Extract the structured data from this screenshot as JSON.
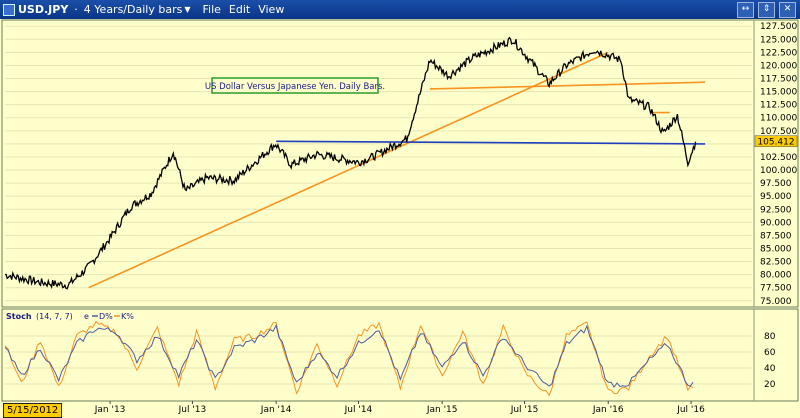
{
  "window": {
    "symbol": "USD.JPY",
    "dot": "·",
    "dropdown_glyph": "▼",
    "description": "4 Years/Daily bars",
    "menu": [
      "File",
      "Edit",
      "View"
    ],
    "controls": [
      "↔",
      "⇕",
      "✕"
    ]
  },
  "colors": {
    "background": "#ffffcc",
    "price": "#000000",
    "trendline": "#f7931e",
    "support": "#1f3fbf",
    "stoch_d": "#505aa0",
    "stoch_k": "#f7931e"
  },
  "annotation": "US Dollar Versus Japanese Yen. Daily Bars.",
  "stoch_header": {
    "name": "Stoch",
    "params": "(14, 7, 7)",
    "marker": "e",
    "d_label": "D%",
    "k_label": "K%"
  },
  "date_box": "5/15/2012",
  "chart_data": [
    {
      "type": "line",
      "series": [
        {
          "x": [
            "2012-05-15",
            "2012-08-01",
            "2012-10-01",
            "2012-11-15",
            "2013-01-01",
            "2013-02-15",
            "2013-04-01",
            "2013-05-20",
            "2013-06-15",
            "2013-08-01",
            "2013-10-01",
            "2013-12-31",
            "2014-02-03",
            "2014-04-01",
            "2014-07-01",
            "2014-08-01",
            "2014-10-15",
            "2014-12-05",
            "2015-01-15",
            "2015-03-10",
            "2015-06-05",
            "2015-08-24",
            "2015-10-01",
            "2015-12-01",
            "2016-01-29",
            "2016-02-15",
            "2016-04-01",
            "2016-05-01",
            "2016-06-01",
            "2016-06-24",
            "2016-07-11"
          ],
          "values": [
            80.0,
            78.5,
            78.0,
            81.5,
            87.0,
            93.0,
            95.5,
            103.5,
            96.0,
            98.5,
            98.0,
            105.0,
            101.0,
            103.0,
            101.5,
            102.5,
            106.0,
            121.0,
            118.0,
            121.5,
            125.0,
            116.5,
            120.0,
            123.0,
            121.0,
            113.5,
            112.0,
            107.0,
            110.5,
            101.5,
            105.41
          ]
        }
      ],
      "y_ticks": [
        "127.500",
        "125.000",
        "122.500",
        "120.000",
        "117.500",
        "115.000",
        "112.500",
        "110.000",
        "107.500",
        "105.000",
        "102.500",
        "100.000",
        "97.500",
        "95.000",
        "92.500",
        "90.000",
        "87.500",
        "85.000",
        "82.500",
        "80.000",
        "77.500",
        "75.000"
      ],
      "ylim": [
        74.0,
        128.5
      ],
      "last_value": "105.412",
      "trendlines": [
        {
          "name": "rising-support",
          "from": [
            "2012-11-15",
            77.5
          ],
          "to": [
            "2016-01-01",
            122.5
          ],
          "color": "#f7931e"
        },
        {
          "name": "horizontal-resistance",
          "from": [
            "2014-12-05",
            115.5
          ],
          "to": [
            "2016-08-01",
            116.8
          ],
          "color": "#f7931e"
        },
        {
          "name": "short-support",
          "from": [
            "2016-04-01",
            111.0
          ],
          "to": [
            "2016-05-15",
            111.0
          ],
          "color": "#f7931e"
        },
        {
          "name": "horizontal-support",
          "from": [
            "2014-01-01",
            105.5
          ],
          "to": [
            "2016-08-01",
            105.0
          ],
          "color": "#1f3fbf"
        }
      ]
    },
    {
      "type": "line",
      "x_ticks": [
        "Jan '13",
        "Jul '13",
        "Jan '14",
        "Jul '14",
        "Jan '15",
        "Jul '15",
        "Jan '16",
        "Jul '16"
      ],
      "y_ticks": [
        "80",
        "60",
        "40",
        "20"
      ],
      "ylim": [
        0,
        100
      ],
      "series": [
        {
          "key": "k",
          "x": [
            "2012-05-15",
            "2012-06-20",
            "2012-08-01",
            "2012-09-10",
            "2012-10-20",
            "2012-12-01",
            "2013-01-15",
            "2013-03-01",
            "2013-04-15",
            "2013-06-01",
            "2013-07-10",
            "2013-08-20",
            "2013-10-01",
            "2013-11-15",
            "2014-01-01",
            "2014-02-15",
            "2014-04-01",
            "2014-05-15",
            "2014-07-01",
            "2014-08-15",
            "2014-10-01",
            "2014-11-15",
            "2015-01-01",
            "2015-02-15",
            "2015-04-01",
            "2015-05-15",
            "2015-07-01",
            "2015-08-24",
            "2015-10-01",
            "2015-11-15",
            "2016-01-01",
            "2016-02-15",
            "2016-04-01",
            "2016-05-10",
            "2016-06-24",
            "2016-07-11"
          ],
          "values": [
            70,
            20,
            75,
            15,
            80,
            95,
            85,
            40,
            90,
            20,
            85,
            15,
            75,
            80,
            95,
            10,
            70,
            20,
            80,
            95,
            15,
            95,
            30,
            85,
            20,
            90,
            35,
            5,
            80,
            95,
            10,
            15,
            55,
            80,
            12,
            20
          ]
        },
        {
          "key": "d",
          "x": [
            "2012-05-15",
            "2012-06-20",
            "2012-08-01",
            "2012-09-10",
            "2012-10-20",
            "2012-12-01",
            "2013-01-15",
            "2013-03-01",
            "2013-04-15",
            "2013-06-01",
            "2013-07-10",
            "2013-08-20",
            "2013-10-01",
            "2013-11-15",
            "2014-01-01",
            "2014-02-15",
            "2014-04-01",
            "2014-05-15",
            "2014-07-01",
            "2014-08-15",
            "2014-10-01",
            "2014-11-15",
            "2015-01-01",
            "2015-02-15",
            "2015-04-01",
            "2015-05-15",
            "2015-07-01",
            "2015-08-24",
            "2015-10-01",
            "2015-11-15",
            "2016-01-01",
            "2016-02-15",
            "2016-04-01",
            "2016-05-10",
            "2016-06-24",
            "2016-07-11"
          ],
          "values": [
            65,
            30,
            65,
            25,
            70,
            90,
            85,
            50,
            80,
            30,
            75,
            25,
            65,
            75,
            90,
            20,
            60,
            30,
            70,
            90,
            25,
            85,
            40,
            75,
            30,
            80,
            45,
            15,
            70,
            90,
            20,
            20,
            50,
            70,
            20,
            22
          ]
        }
      ]
    }
  ]
}
